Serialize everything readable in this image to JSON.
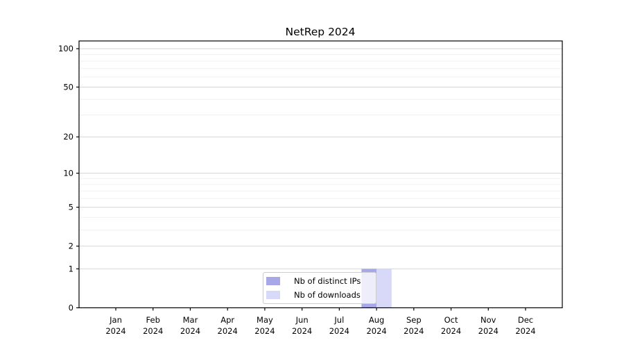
{
  "figure": {
    "background": "#ffffff"
  },
  "chart_data": {
    "type": "bar",
    "title": "NetRep 2024",
    "categories": [
      "Jan",
      "Feb",
      "Mar",
      "Apr",
      "May",
      "Jun",
      "Jul",
      "Aug",
      "Sep",
      "Oct",
      "Nov",
      "Dec"
    ],
    "x_tick_year": "2024",
    "series": [
      {
        "name": "Nb of distinct IPs",
        "color": "#a8a8e8",
        "values": [
          0,
          0,
          0,
          0,
          0,
          0,
          0,
          1,
          0,
          0,
          0,
          0
        ]
      },
      {
        "name": "Nb of downloads",
        "color": "#d8d8f8",
        "values": [
          0,
          0,
          0,
          0,
          0,
          0,
          0,
          1,
          0,
          0,
          0,
          0
        ]
      }
    ],
    "xlabel": "",
    "ylabel": "",
    "yscale": "log1p",
    "ylim": [
      0,
      115
    ],
    "yticks_major": [
      0,
      1,
      2,
      5,
      10,
      20,
      50,
      100
    ],
    "yticks_minor": [
      3,
      4,
      6,
      7,
      8,
      9,
      30,
      40,
      60,
      70,
      80,
      90
    ],
    "grid": "horizontal, major and minor",
    "legend_position": "inside plot, lower center"
  },
  "colors": {
    "grid_major": "#d6d6d6",
    "grid_minor": "#efefef",
    "spine": "#000000",
    "tick": "#000000",
    "text": "#000000",
    "legend_border": "#cccccc"
  }
}
